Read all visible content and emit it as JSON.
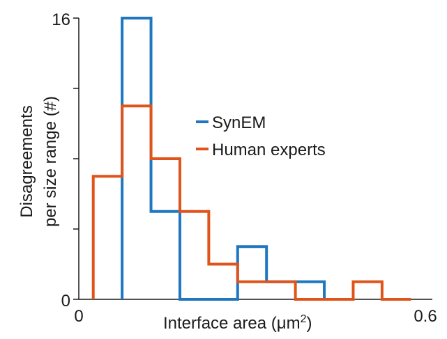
{
  "chart_data": {
    "type": "histogram",
    "xlabel": "Interface area (μm",
    "xlabel_superscript": "2",
    "xlabel_suffix": ")",
    "ylabel_line1": "Disagreements",
    "ylabel_line2": "per size range (#)",
    "xlim": [
      0,
      0.6
    ],
    "ylim": [
      0,
      16
    ],
    "x_tick_labels": [
      "0",
      "0.6"
    ],
    "y_tick_labels": [
      "0",
      "16"
    ],
    "y_tick_values": [
      0,
      4,
      8,
      12,
      16
    ],
    "bin_edges": [
      0.025,
      0.075,
      0.125,
      0.175,
      0.225,
      0.275,
      0.325,
      0.375,
      0.425,
      0.475,
      0.525,
      0.575,
      0.625
    ],
    "series": [
      {
        "name": "SynEM",
        "color": "#1f77c0",
        "values": [
          0,
          16,
          5,
          0,
          0,
          3,
          1,
          1,
          0,
          0,
          0,
          0
        ]
      },
      {
        "name": "Human experts",
        "color": "#e0541c",
        "values": [
          7,
          11,
          8,
          5,
          2,
          1,
          1,
          0,
          0,
          1,
          0,
          0
        ]
      }
    ],
    "legend_position": "center-right"
  }
}
